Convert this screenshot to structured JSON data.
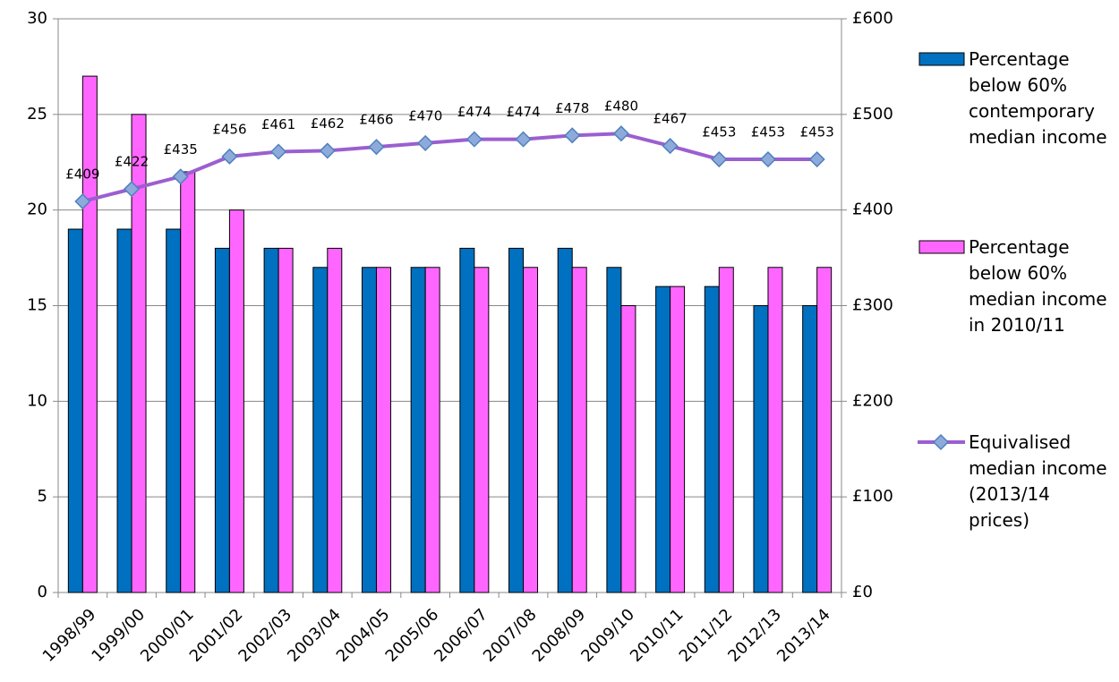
{
  "chart_data": {
    "type": "bar",
    "categories": [
      "1998/99",
      "1999/00",
      "2000/01",
      "2001/02",
      "2002/03",
      "2003/04",
      "2004/05",
      "2005/06",
      "2006/07",
      "2007/08",
      "2008/09",
      "2009/10",
      "2010/11",
      "2011/12",
      "2012/13",
      "2013/14"
    ],
    "series": [
      {
        "name": "Percentage below 60% contemporary median income",
        "color": "#0070c0",
        "values": [
          19,
          19,
          19,
          18,
          18,
          17,
          17,
          17,
          18,
          18,
          18,
          17,
          16,
          16,
          15,
          15
        ]
      },
      {
        "name": "Percentage below 60% median income in 2010/11",
        "color": "#ff66ff",
        "values": [
          27,
          25,
          22,
          20,
          18,
          18,
          17,
          17,
          17,
          17,
          17,
          15,
          16,
          17,
          17,
          17
        ]
      },
      {
        "name": "Equivalised median income (2013/14 prices)",
        "color": "#9b5fd0",
        "type": "line",
        "axis": "y2",
        "marker_color": "#8eaadb",
        "values": [
          409,
          422,
          435,
          456,
          461,
          462,
          466,
          470,
          474,
          474,
          478,
          480,
          467,
          453,
          453,
          453
        ],
        "value_labels": [
          "£409",
          "£422",
          "£435",
          "£456",
          "£461",
          "£462",
          "£466",
          "£470",
          "£474",
          "£474",
          "£478",
          "£480",
          "£467",
          "£453",
          "£453",
          "£453"
        ]
      }
    ],
    "ylim": [
      0,
      30
    ],
    "yticks": [
      0,
      5,
      10,
      15,
      20,
      25,
      30
    ],
    "y2lim": [
      0,
      600
    ],
    "y2ticks": [
      {
        "value": 0,
        "label": "£0"
      },
      {
        "value": 100,
        "label": "£100"
      },
      {
        "value": 200,
        "label": "£200"
      },
      {
        "value": 300,
        "label": "£300"
      },
      {
        "value": 400,
        "label": "£400"
      },
      {
        "value": 500,
        "label": "£500"
      },
      {
        "value": 600,
        "label": "£600"
      }
    ],
    "grid": true,
    "legend": "right"
  }
}
